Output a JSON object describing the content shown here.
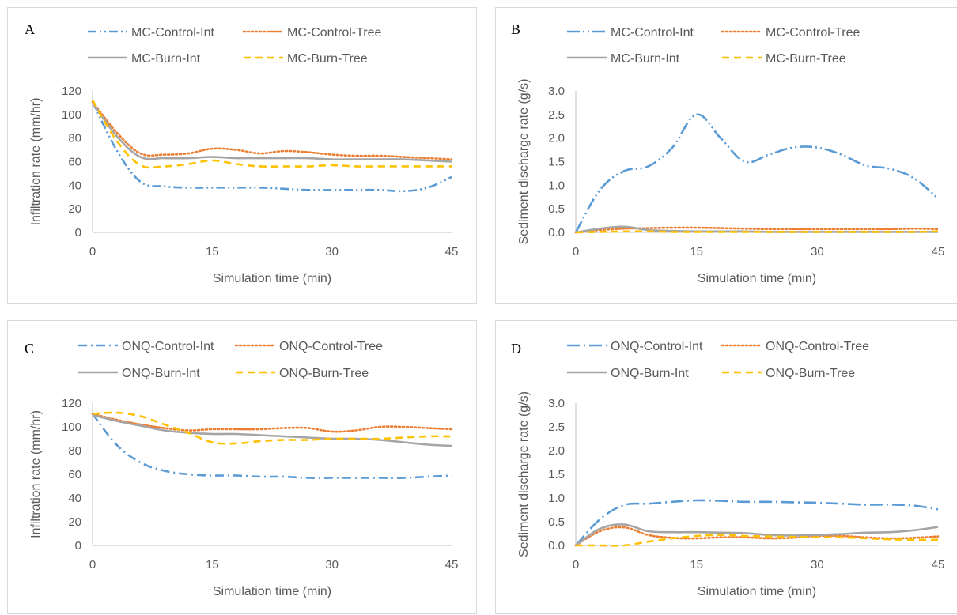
{
  "chart_data": [
    {
      "panel_label": "A",
      "type": "line",
      "xlabel": "Simulation time (min)",
      "ylabel": "Infiltration rate (mm/hr)",
      "xlim": [
        0,
        45
      ],
      "ylim": [
        0,
        120
      ],
      "xticks": [
        0,
        15,
        30,
        45
      ],
      "yticks": [
        0,
        20,
        40,
        60,
        80,
        100,
        120
      ],
      "legend_position": "top",
      "series": [
        {
          "name": "MC-Control-Int",
          "color": "#5b9bd5",
          "dash": "dashdotdot",
          "x": [
            0,
            3,
            6,
            9,
            12,
            15,
            18,
            21,
            24,
            27,
            30,
            33,
            36,
            39,
            42,
            45
          ],
          "y": [
            111,
            70,
            43,
            39,
            38,
            38,
            38,
            38,
            37,
            36,
            36,
            36,
            36,
            35,
            38,
            47
          ]
        },
        {
          "name": "MC-Control-Tree",
          "color": "#ed7d31",
          "dash": "dotted",
          "x": [
            0,
            3,
            6,
            9,
            12,
            15,
            18,
            21,
            24,
            27,
            30,
            33,
            36,
            39,
            42,
            45
          ],
          "y": [
            111,
            85,
            67,
            66,
            67,
            71,
            70,
            67,
            69,
            68,
            66,
            65,
            65,
            64,
            63,
            62
          ]
        },
        {
          "name": "MC-Burn-Int",
          "color": "#a5a5a5",
          "dash": "solid",
          "x": [
            0,
            3,
            6,
            9,
            12,
            15,
            18,
            21,
            24,
            27,
            30,
            33,
            36,
            39,
            42,
            45
          ],
          "y": [
            110,
            82,
            64,
            63,
            63,
            64,
            63,
            63,
            63,
            63,
            62,
            62,
            62,
            62,
            61,
            60
          ]
        },
        {
          "name": "MC-Burn-Tree",
          "color": "#ffc000",
          "dash": "dashed",
          "x": [
            0,
            3,
            6,
            9,
            12,
            15,
            18,
            21,
            24,
            27,
            30,
            33,
            36,
            39,
            42,
            45
          ],
          "y": [
            112,
            78,
            57,
            56,
            58,
            61,
            58,
            56,
            56,
            56,
            57,
            56,
            56,
            56,
            56,
            56
          ]
        }
      ]
    },
    {
      "panel_label": "B",
      "type": "line",
      "xlabel": "Simulation time (min)",
      "ylabel": "Sediment discharge rate (g/s)",
      "xlim": [
        0,
        45
      ],
      "ylim": [
        0,
        3.0
      ],
      "xticks": [
        0,
        15,
        30,
        45
      ],
      "yticks": [
        0.0,
        0.5,
        1.0,
        1.5,
        2.0,
        2.5,
        3.0
      ],
      "legend_position": "top",
      "series": [
        {
          "name": "MC-Control-Int",
          "color": "#5b9bd5",
          "dash": "longdashdotdot",
          "x": [
            0,
            3,
            6,
            9,
            12,
            15,
            18,
            21,
            24,
            27,
            30,
            33,
            36,
            39,
            42,
            45
          ],
          "y": [
            0.0,
            0.9,
            1.3,
            1.4,
            1.8,
            2.5,
            2.0,
            1.5,
            1.65,
            1.8,
            1.8,
            1.65,
            1.42,
            1.35,
            1.15,
            0.72
          ]
        },
        {
          "name": "MC-Control-Tree",
          "color": "#ed7d31",
          "dash": "dotted",
          "x": [
            0,
            3,
            6,
            9,
            12,
            15,
            18,
            21,
            24,
            27,
            30,
            33,
            36,
            39,
            42,
            45
          ],
          "y": [
            0.0,
            0.05,
            0.08,
            0.09,
            0.1,
            0.1,
            0.09,
            0.08,
            0.07,
            0.07,
            0.07,
            0.07,
            0.07,
            0.07,
            0.08,
            0.07
          ]
        },
        {
          "name": "MC-Burn-Int",
          "color": "#a5a5a5",
          "dash": "solid",
          "x": [
            0,
            3,
            6,
            9,
            12,
            15,
            18,
            21,
            24,
            27,
            30,
            33,
            36,
            39,
            42,
            45
          ],
          "y": [
            0.0,
            0.08,
            0.12,
            0.05,
            0.03,
            0.02,
            0.02,
            0.02,
            0.01,
            0.01,
            0.01,
            0.01,
            0.01,
            0.01,
            0.01,
            0.01
          ]
        },
        {
          "name": "MC-Burn-Tree",
          "color": "#ffc000",
          "dash": "dashed",
          "x": [
            0,
            3,
            6,
            9,
            12,
            15,
            18,
            21,
            24,
            27,
            30,
            33,
            36,
            39,
            42,
            45
          ],
          "y": [
            0.0,
            0.01,
            0.02,
            0.02,
            0.01,
            0.01,
            0.01,
            0.01,
            0.01,
            0.01,
            0.01,
            0.01,
            0.01,
            0.01,
            0.01,
            0.02
          ]
        }
      ]
    },
    {
      "panel_label": "C",
      "type": "line",
      "xlabel": "Simulation time (min)",
      "ylabel": "Infiltration rate (mm/hr)",
      "xlim": [
        0,
        45
      ],
      "ylim": [
        0,
        120
      ],
      "xticks": [
        0,
        15,
        30,
        45
      ],
      "yticks": [
        0,
        20,
        40,
        60,
        80,
        100,
        120
      ],
      "legend_position": "top",
      "series": [
        {
          "name": "ONQ-Control-Int",
          "color": "#5b9bd5",
          "dash": "dashdot",
          "x": [
            0,
            3,
            6,
            9,
            12,
            15,
            18,
            21,
            24,
            27,
            30,
            33,
            36,
            39,
            42,
            45
          ],
          "y": [
            111,
            85,
            70,
            63,
            60,
            59,
            59,
            58,
            58,
            57,
            57,
            57,
            57,
            57,
            58,
            59
          ]
        },
        {
          "name": "ONQ-Control-Tree",
          "color": "#ed7d31",
          "dash": "dotted",
          "x": [
            0,
            3,
            6,
            9,
            12,
            15,
            18,
            21,
            24,
            27,
            30,
            33,
            36,
            39,
            42,
            45
          ],
          "y": [
            111,
            106,
            102,
            99,
            97,
            98,
            98,
            98,
            99,
            99,
            96,
            97,
            100,
            100,
            99,
            98
          ]
        },
        {
          "name": "ONQ-Burn-Int",
          "color": "#a5a5a5",
          "dash": "solid",
          "x": [
            0,
            3,
            6,
            9,
            12,
            15,
            18,
            21,
            24,
            27,
            30,
            33,
            36,
            39,
            42,
            45
          ],
          "y": [
            110,
            105,
            101,
            97,
            95,
            94,
            94,
            93,
            92,
            91,
            90,
            90,
            89,
            87,
            85,
            84
          ]
        },
        {
          "name": "ONQ-Burn-Tree",
          "color": "#ffc000",
          "dash": "dashed",
          "x": [
            0,
            3,
            6,
            9,
            12,
            15,
            18,
            21,
            24,
            27,
            30,
            33,
            36,
            39,
            42,
            45
          ],
          "y": [
            111,
            112,
            109,
            102,
            95,
            87,
            86,
            88,
            89,
            89,
            90,
            90,
            90,
            91,
            92,
            92
          ]
        }
      ]
    },
    {
      "panel_label": "D",
      "type": "line",
      "xlabel": "Simulation time (min)",
      "ylabel": "Sediment discharge rate (g/s)",
      "xlim": [
        0,
        45
      ],
      "ylim": [
        0,
        3.0
      ],
      "xticks": [
        0,
        15,
        30,
        45
      ],
      "yticks": [
        0.0,
        0.5,
        1.0,
        1.5,
        2.0,
        2.5,
        3.0
      ],
      "legend_position": "top",
      "series": [
        {
          "name": "ONQ-Control-Int",
          "color": "#5b9bd5",
          "dash": "longdashdot",
          "x": [
            0,
            3,
            6,
            9,
            12,
            15,
            18,
            21,
            24,
            27,
            30,
            33,
            36,
            39,
            42,
            45
          ],
          "y": [
            0.0,
            0.55,
            0.85,
            0.88,
            0.92,
            0.95,
            0.94,
            0.92,
            0.92,
            0.91,
            0.9,
            0.88,
            0.86,
            0.86,
            0.84,
            0.76
          ]
        },
        {
          "name": "ONQ-Control-Tree",
          "color": "#ed7d31",
          "dash": "dotted",
          "x": [
            0,
            3,
            6,
            9,
            12,
            15,
            18,
            21,
            24,
            27,
            30,
            33,
            36,
            39,
            42,
            45
          ],
          "y": [
            0.0,
            0.3,
            0.38,
            0.22,
            0.16,
            0.15,
            0.17,
            0.17,
            0.15,
            0.16,
            0.2,
            0.2,
            0.17,
            0.15,
            0.16,
            0.19
          ]
        },
        {
          "name": "ONQ-Burn-Int",
          "color": "#a5a5a5",
          "dash": "solid",
          "x": [
            0,
            3,
            6,
            9,
            12,
            15,
            18,
            21,
            24,
            27,
            30,
            33,
            36,
            39,
            42,
            45
          ],
          "y": [
            0.0,
            0.35,
            0.44,
            0.3,
            0.28,
            0.28,
            0.27,
            0.26,
            0.22,
            0.21,
            0.22,
            0.24,
            0.27,
            0.28,
            0.32,
            0.39
          ]
        },
        {
          "name": "ONQ-Burn-Tree",
          "color": "#ffc000",
          "dash": "dashed",
          "x": [
            0,
            3,
            6,
            9,
            12,
            15,
            18,
            21,
            24,
            27,
            30,
            33,
            36,
            39,
            42,
            45
          ],
          "y": [
            0.0,
            0.0,
            0.0,
            0.08,
            0.15,
            0.2,
            0.22,
            0.2,
            0.19,
            0.18,
            0.17,
            0.17,
            0.15,
            0.13,
            0.12,
            0.12
          ]
        }
      ]
    }
  ]
}
